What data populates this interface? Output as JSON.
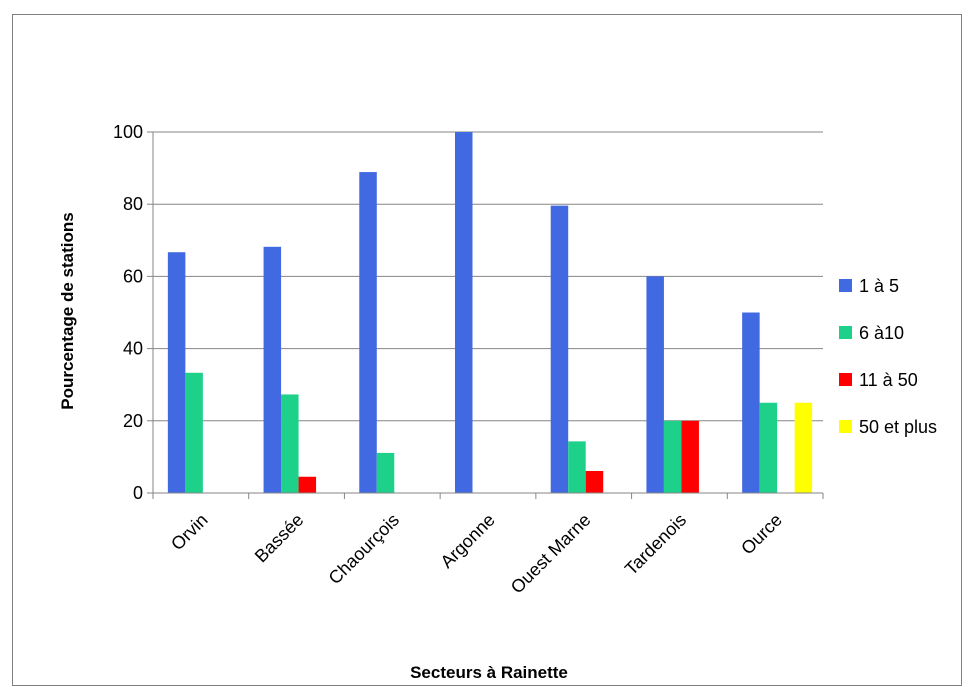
{
  "chart_data": {
    "type": "bar",
    "title": "",
    "xlabel": "Secteurs à Rainette",
    "ylabel": "Pourcentage de stations",
    "categories": [
      "Orvin",
      "Bassée",
      "Chaourçois",
      "Argonne",
      "Ouest Marne",
      "Tardenois",
      "Ource"
    ],
    "series": [
      {
        "name": "1 à 5",
        "color": "#4169e1",
        "values": [
          66.7,
          68.2,
          88.9,
          100,
          79.6,
          60,
          50
        ]
      },
      {
        "name": "6 à10",
        "color": "#1dd18a",
        "values": [
          33.3,
          27.3,
          11.1,
          0,
          14.3,
          20,
          25
        ]
      },
      {
        "name": "11 à 50",
        "color": "#ff0000",
        "values": [
          0,
          4.5,
          0,
          0,
          6.1,
          20,
          0
        ]
      },
      {
        "name": "50 et plus",
        "color": "#ffff00",
        "values": [
          0,
          0,
          0,
          0,
          0,
          0,
          25
        ]
      }
    ],
    "ylim": [
      0,
      100
    ],
    "yticks": [
      0,
      20,
      40,
      60,
      80,
      100
    ],
    "grid": true,
    "legend_position": "right"
  }
}
